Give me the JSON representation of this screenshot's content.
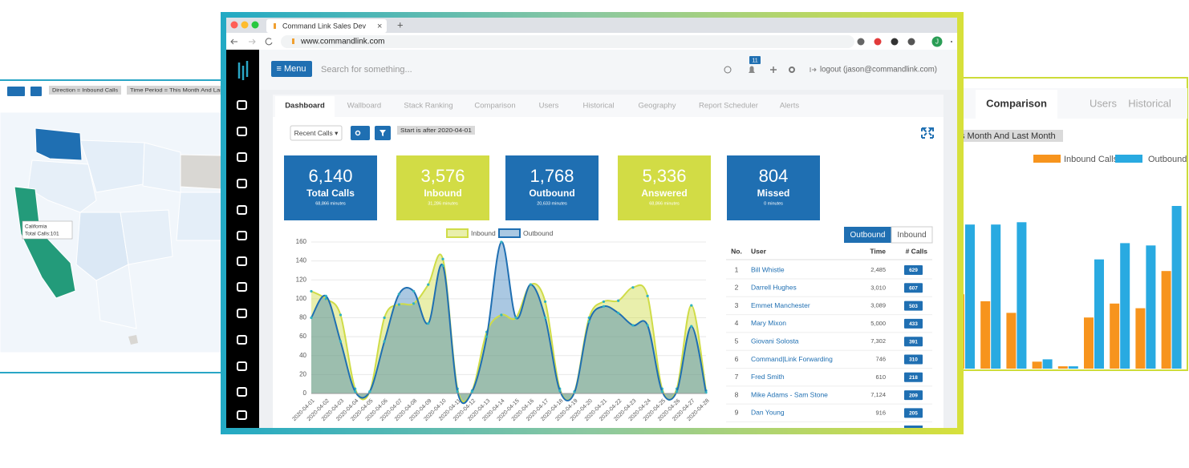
{
  "browser": {
    "tab_title": "Command Link Sales Dev",
    "tab_close": "×",
    "new_tab": "+",
    "url": "www.commandlink.com",
    "profile": "J"
  },
  "header": {
    "menu": "≡ Menu",
    "search": "Search for something...",
    "notifications": "11",
    "logout": "logout (jason@commandlink.com)"
  },
  "tabs": [
    "Dashboard",
    "Wallboard",
    "Stack Ranking",
    "Comparison",
    "Users",
    "Historical",
    "Geography",
    "Report Scheduler",
    "Alerts"
  ],
  "controls": {
    "recent": "Recent Calls ▾",
    "filter": "Start is after 2020-04-01"
  },
  "tiles": [
    {
      "value": "6,140",
      "label": "Total Calls",
      "sub": "68,866 minutes"
    },
    {
      "value": "3,576",
      "label": "Inbound",
      "sub": "31,286 minutes"
    },
    {
      "value": "1,768",
      "label": "Outbound",
      "sub": "20,633 minutes"
    },
    {
      "value": "5,336",
      "label": "Answered",
      "sub": "68,866 minutes"
    },
    {
      "value": "804",
      "label": "Missed",
      "sub": "0 minutes"
    }
  ],
  "chart_data": [
    {
      "type": "line",
      "categories": [
        "2020-04-01",
        "2020-04-02",
        "2020-04-03",
        "2020-04-04",
        "2020-04-05",
        "2020-04-06",
        "2020-04-07",
        "2020-04-08",
        "2020-04-09",
        "2020-04-10",
        "2020-04-11",
        "2020-04-12",
        "2020-04-13",
        "2020-04-14",
        "2020-04-15",
        "2020-04-16",
        "2020-04-17",
        "2020-04-18",
        "2020-04-19",
        "2020-04-20",
        "2020-04-21",
        "2020-04-22",
        "2020-04-23",
        "2020-04-24",
        "2020-04-25",
        "2020-04-26",
        "2020-04-27",
        "2020-04-28"
      ],
      "series": [
        {
          "name": "Inbound",
          "color": "#cfdc48",
          "values": [
            108,
            100,
            83,
            5,
            2,
            80,
            94,
            95,
            115,
            142,
            5,
            3,
            65,
            83,
            80,
            115,
            97,
            5,
            2,
            80,
            97,
            98,
            112,
            103,
            5,
            5,
            93,
            3
          ]
        },
        {
          "name": "Outbound",
          "color": "#1f6fb2",
          "values": [
            80,
            103,
            55,
            2,
            2,
            55,
            105,
            108,
            74,
            135,
            2,
            2,
            60,
            160,
            80,
            115,
            80,
            3,
            1,
            76,
            92,
            85,
            72,
            72,
            2,
            2,
            71,
            1
          ]
        }
      ],
      "ylim": [
        0,
        160
      ],
      "yticks": [
        0,
        20,
        40,
        60,
        80,
        100,
        120,
        140,
        160
      ],
      "grid": true
    },
    {
      "type": "bar",
      "categories": [
        null,
        null,
        null,
        null,
        null,
        null,
        null,
        null,
        null
      ],
      "series": [
        {
          "name": "Inbound Calls",
          "color": "#f7941d",
          "values": [
            32,
            29,
            24,
            3,
            1,
            22,
            28,
            26,
            42
          ]
        },
        {
          "name": "Outbound",
          "color": "#29aae1",
          "values": [
            62,
            62,
            63,
            4,
            1,
            47,
            54,
            53,
            70
          ]
        }
      ],
      "ylim": [
        0,
        100
      ]
    }
  ],
  "ranking": {
    "toggle": [
      "Outbound",
      "Inbound"
    ],
    "columns": [
      "No.",
      "User",
      "Time",
      "# Calls"
    ],
    "rows": [
      [
        "1",
        "Bill Whistle",
        "2,485",
        "629"
      ],
      [
        "2",
        "Darrell Hughes",
        "3,010",
        "607"
      ],
      [
        "3",
        "Emmet Manchester",
        "3,089",
        "503"
      ],
      [
        "4",
        "Mary Mixon",
        "5,000",
        "433"
      ],
      [
        "5",
        "Giovani Solosta",
        "7,302",
        "391"
      ],
      [
        "6",
        "Command|Link Forwarding",
        "746",
        "310"
      ],
      [
        "7",
        "Fred Smith",
        "610",
        "218"
      ],
      [
        "8",
        "Mike Adams - Sam Stone",
        "7,124",
        "209"
      ],
      [
        "9",
        "Dan Young",
        "916",
        "205"
      ]
    ]
  },
  "map_panel": {
    "filters": [
      "Direction = Inbound Calls",
      "Time Period = This Month And Las"
    ],
    "tooltip": [
      "California",
      "Total Calls:101"
    ]
  },
  "comparison_panel": {
    "tabs": [
      "Comparison",
      "Users",
      "Historical"
    ],
    "filter": "s Month And Last Month"
  }
}
